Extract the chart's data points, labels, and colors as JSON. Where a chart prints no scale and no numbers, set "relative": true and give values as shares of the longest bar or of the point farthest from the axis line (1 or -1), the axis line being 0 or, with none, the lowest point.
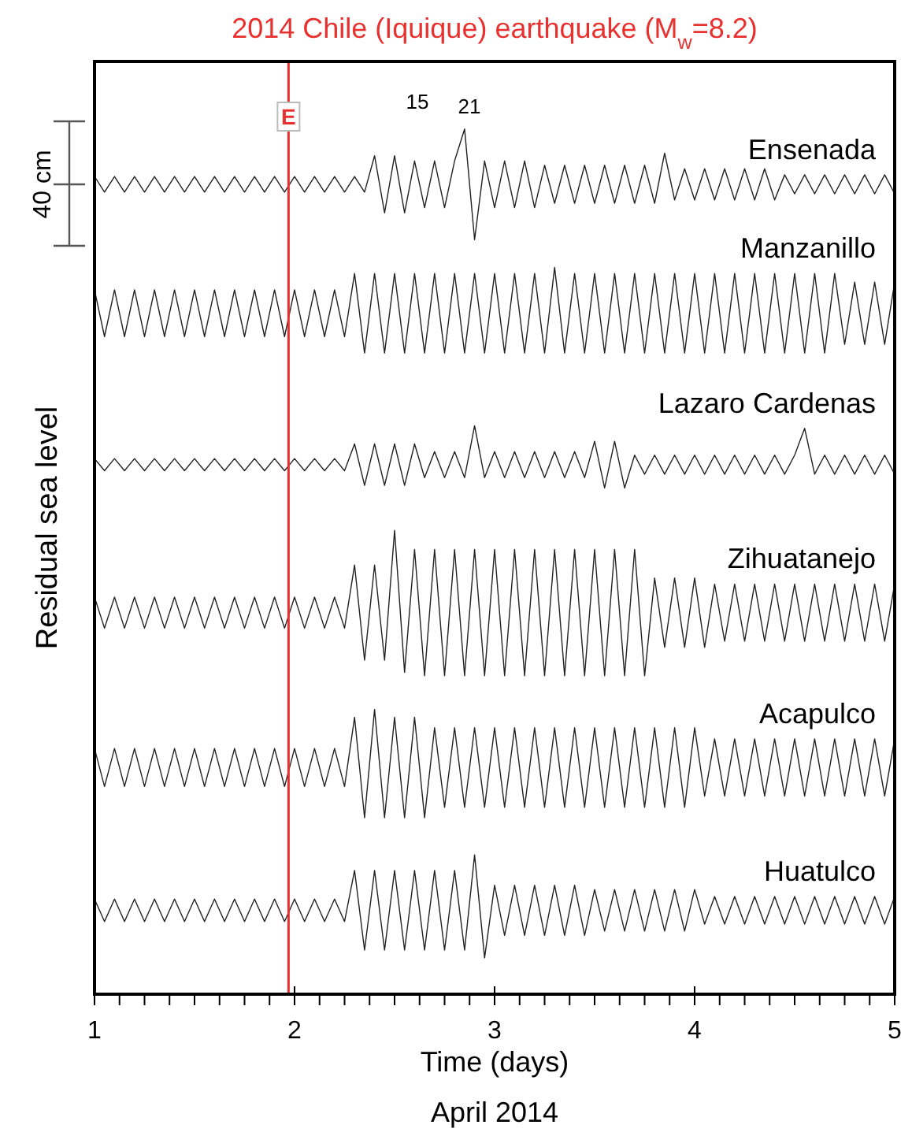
{
  "chart_data": {
    "type": "line",
    "relative": true,
    "title": "2014 Chile (Iquique) earthquake (M$_{w}$=8.2)",
    "xlabel": "Time (days)",
    "ylabel": "Residual sea level",
    "xlim": [
      1,
      5
    ],
    "xticks": [
      1,
      {
        "value": 1.125,
        "label": null
      },
      {
        "value": 1.25,
        "label": null
      },
      {
        "value": 1.375,
        "label": null
      },
      {
        "value": 1.5,
        "label": null
      },
      {
        "value": 1.625,
        "label": null
      },
      {
        "value": 1.75,
        "label": null
      },
      {
        "value": 1.875,
        "label": null
      },
      2,
      {
        "value": 2.125,
        "label": null
      },
      {
        "value": 2.25,
        "label": null
      },
      {
        "value": 2.375,
        "label": null
      },
      {
        "value": 2.5,
        "label": null
      },
      {
        "value": 2.625,
        "label": null
      },
      {
        "value": 2.75,
        "label": null
      },
      {
        "value": 2.875,
        "label": null
      },
      3,
      {
        "value": 3.125,
        "label": null
      },
      {
        "value": 3.25,
        "label": null
      },
      {
        "value": 3.375,
        "label": null
      },
      {
        "value": 3.5,
        "label": null
      },
      {
        "value": 3.625,
        "label": null
      },
      {
        "value": 3.75,
        "label": null
      },
      {
        "value": 3.875,
        "label": null
      },
      4,
      {
        "value": 4.125,
        "label": null
      },
      {
        "value": 4.25,
        "label": null
      },
      {
        "value": 4.375,
        "label": null
      },
      {
        "value": 4.5,
        "label": null
      },
      {
        "value": 4.625,
        "label": null
      },
      {
        "value": 4.75,
        "label": null
      },
      {
        "value": 4.875,
        "label": null
      },
      5
    ],
    "x": [
      1,
      1.05,
      1.1,
      1.15,
      1.2,
      1.25,
      1.3,
      1.35,
      1.4,
      1.45,
      1.5,
      1.55,
      1.6,
      1.65,
      1.7,
      1.75,
      1.8,
      1.85,
      1.9,
      1.95,
      2,
      2.05,
      2.1,
      2.15,
      2.2,
      2.25,
      2.3,
      2.35,
      2.4,
      2.45,
      2.5,
      2.55,
      2.6,
      2.65,
      2.7,
      2.75,
      2.8,
      2.85,
      2.9,
      2.95,
      3,
      3.05,
      3.1,
      3.15,
      3.2,
      3.25,
      3.3,
      3.35,
      3.4,
      3.45,
      3.5,
      3.55,
      3.6,
      3.65,
      3.7,
      3.75,
      3.8,
      3.85,
      3.9,
      3.95,
      4,
      4.05,
      4.1,
      4.15,
      4.2,
      4.25,
      4.3,
      4.35,
      4.4,
      4.45,
      4.5,
      4.55,
      4.6,
      4.65,
      4.7,
      4.75,
      4.8,
      4.85,
      4.9,
      4.95,
      5
    ],
    "series": [
      {
        "name": "Ensenada",
        "color": "#222222",
        "values": [
          0.945,
          0.927,
          0.945,
          0.927,
          0.945,
          0.927,
          0.945,
          0.927,
          0.945,
          0.927,
          0.945,
          0.927,
          0.945,
          0.927,
          0.945,
          0.927,
          0.945,
          0.927,
          0.945,
          0.927,
          0.945,
          0.927,
          0.945,
          0.927,
          0.945,
          0.927,
          0.945,
          0.927,
          0.969,
          0.903,
          0.969,
          0.903,
          0.963,
          0.909,
          0.963,
          0.909,
          0.963,
          1.0,
          0.872,
          0.963,
          0.909,
          0.963,
          0.909,
          0.963,
          0.909,
          0.958,
          0.914,
          0.958,
          0.914,
          0.958,
          0.914,
          0.958,
          0.914,
          0.958,
          0.914,
          0.958,
          0.914,
          0.972,
          0.918,
          0.954,
          0.918,
          0.954,
          0.918,
          0.954,
          0.918,
          0.954,
          0.918,
          0.954,
          0.918,
          0.947,
          0.925,
          0.947,
          0.925,
          0.947,
          0.925,
          0.947,
          0.925,
          0.947,
          0.925,
          0.947,
          0.925
        ]
      },
      {
        "name": "Manzanillo",
        "color": "#222222",
        "values": [
          0.814,
          0.76,
          0.814,
          0.76,
          0.814,
          0.76,
          0.814,
          0.76,
          0.814,
          0.76,
          0.814,
          0.76,
          0.814,
          0.76,
          0.814,
          0.76,
          0.814,
          0.76,
          0.814,
          0.76,
          0.814,
          0.76,
          0.814,
          0.76,
          0.814,
          0.76,
          0.833,
          0.741,
          0.833,
          0.741,
          0.833,
          0.741,
          0.833,
          0.741,
          0.833,
          0.741,
          0.833,
          0.741,
          0.833,
          0.741,
          0.833,
          0.741,
          0.833,
          0.741,
          0.833,
          0.741,
          0.84,
          0.741,
          0.833,
          0.741,
          0.833,
          0.741,
          0.833,
          0.741,
          0.833,
          0.741,
          0.833,
          0.741,
          0.833,
          0.741,
          0.833,
          0.741,
          0.833,
          0.741,
          0.833,
          0.741,
          0.833,
          0.741,
          0.833,
          0.741,
          0.833,
          0.741,
          0.833,
          0.741,
          0.833,
          0.751,
          0.823,
          0.751,
          0.823,
          0.751,
          0.823
        ]
      },
      {
        "name": "Lazaro Cardenas",
        "color": "#222222",
        "values": [
          0.619,
          0.605,
          0.619,
          0.605,
          0.619,
          0.605,
          0.619,
          0.605,
          0.619,
          0.605,
          0.619,
          0.605,
          0.619,
          0.605,
          0.619,
          0.605,
          0.619,
          0.605,
          0.619,
          0.605,
          0.619,
          0.605,
          0.619,
          0.605,
          0.619,
          0.605,
          0.636,
          0.588,
          0.636,
          0.588,
          0.636,
          0.588,
          0.636,
          0.597,
          0.627,
          0.597,
          0.627,
          0.597,
          0.657,
          0.597,
          0.627,
          0.597,
          0.627,
          0.597,
          0.627,
          0.597,
          0.627,
          0.597,
          0.627,
          0.597,
          0.639,
          0.585,
          0.639,
          0.585,
          0.623,
          0.601,
          0.623,
          0.601,
          0.623,
          0.601,
          0.623,
          0.601,
          0.623,
          0.601,
          0.623,
          0.601,
          0.623,
          0.601,
          0.623,
          0.601,
          0.623,
          0.654,
          0.601,
          0.623,
          0.601,
          0.623,
          0.601,
          0.623,
          0.601,
          0.623,
          0.601
        ]
      },
      {
        "name": "Zihuatanejo",
        "color": "#222222",
        "values": [
          0.459,
          0.423,
          0.459,
          0.423,
          0.459,
          0.423,
          0.459,
          0.423,
          0.459,
          0.423,
          0.459,
          0.423,
          0.459,
          0.423,
          0.459,
          0.423,
          0.459,
          0.423,
          0.459,
          0.423,
          0.459,
          0.423,
          0.459,
          0.423,
          0.459,
          0.423,
          0.496,
          0.386,
          0.496,
          0.386,
          0.536,
          0.372,
          0.514,
          0.368,
          0.514,
          0.368,
          0.514,
          0.368,
          0.514,
          0.368,
          0.514,
          0.368,
          0.514,
          0.368,
          0.514,
          0.368,
          0.514,
          0.368,
          0.514,
          0.368,
          0.514,
          0.368,
          0.514,
          0.368,
          0.514,
          0.368,
          0.481,
          0.401,
          0.481,
          0.401,
          0.481,
          0.401,
          0.474,
          0.408,
          0.474,
          0.408,
          0.474,
          0.408,
          0.474,
          0.408,
          0.474,
          0.408,
          0.474,
          0.408,
          0.474,
          0.408,
          0.474,
          0.408,
          0.474,
          0.408,
          0.474
        ]
      },
      {
        "name": "Acapulco",
        "color": "#222222",
        "values": [
          0.284,
          0.24,
          0.284,
          0.24,
          0.284,
          0.24,
          0.284,
          0.24,
          0.284,
          0.24,
          0.284,
          0.24,
          0.284,
          0.24,
          0.284,
          0.24,
          0.284,
          0.24,
          0.284,
          0.24,
          0.284,
          0.24,
          0.284,
          0.24,
          0.284,
          0.24,
          0.32,
          0.204,
          0.329,
          0.204,
          0.32,
          0.204,
          0.32,
          0.204,
          0.308,
          0.216,
          0.308,
          0.216,
          0.308,
          0.216,
          0.308,
          0.216,
          0.308,
          0.216,
          0.308,
          0.216,
          0.308,
          0.216,
          0.308,
          0.216,
          0.308,
          0.216,
          0.308,
          0.216,
          0.308,
          0.216,
          0.308,
          0.216,
          0.308,
          0.216,
          0.308,
          0.229,
          0.295,
          0.229,
          0.295,
          0.229,
          0.295,
          0.229,
          0.295,
          0.229,
          0.295,
          0.229,
          0.295,
          0.229,
          0.295,
          0.229,
          0.295,
          0.229,
          0.295,
          0.229,
          0.295
        ]
      },
      {
        "name": "Huatulco",
        "color": "#222222",
        "values": [
          0.11,
          0.084,
          0.11,
          0.084,
          0.11,
          0.084,
          0.11,
          0.084,
          0.11,
          0.084,
          0.11,
          0.084,
          0.11,
          0.084,
          0.11,
          0.084,
          0.11,
          0.084,
          0.11,
          0.084,
          0.11,
          0.084,
          0.11,
          0.084,
          0.11,
          0.084,
          0.143,
          0.051,
          0.143,
          0.051,
          0.143,
          0.051,
          0.143,
          0.051,
          0.143,
          0.051,
          0.143,
          0.051,
          0.161,
          0.042,
          0.126,
          0.068,
          0.126,
          0.068,
          0.126,
          0.068,
          0.126,
          0.068,
          0.126,
          0.068,
          0.121,
          0.073,
          0.121,
          0.073,
          0.121,
          0.073,
          0.121,
          0.073,
          0.121,
          0.073,
          0.121,
          0.081,
          0.113,
          0.081,
          0.113,
          0.081,
          0.113,
          0.081,
          0.113,
          0.081,
          0.113,
          0.081,
          0.113,
          0.081,
          0.113,
          0.081,
          0.113,
          0.081,
          0.113,
          0.081,
          0.113
        ]
      }
    ],
    "ref_lines": [
      {
        "axis": "x",
        "value": 1.97,
        "label": "E",
        "color": "#e8312f"
      }
    ],
    "annotations": [
      "15",
      "21",
      "40 cm",
      "April 2014"
    ]
  }
}
